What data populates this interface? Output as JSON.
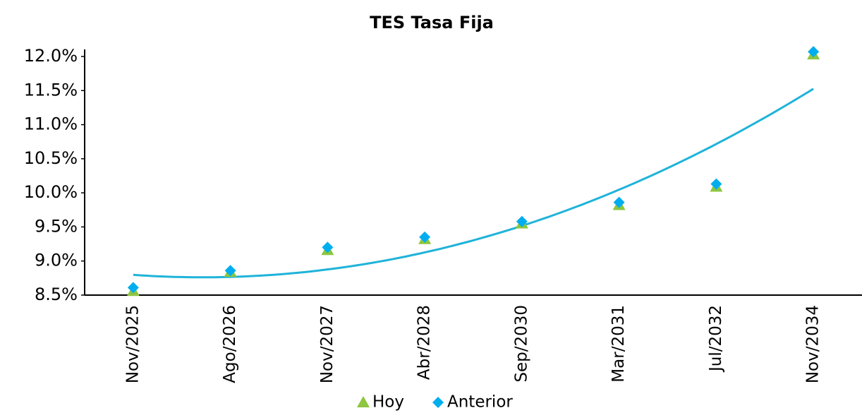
{
  "chart_data": {
    "type": "scatter",
    "title": "TES Tasa Fija",
    "categories": [
      "Nov/2025",
      "Ago/2026",
      "Nov/2027",
      "Abr/2028",
      "Sep/2030",
      "Mar/2031",
      "Jul/2032",
      "Nov/2034"
    ],
    "series": [
      {
        "name": "Hoy",
        "color": "#8dc63f",
        "marker": "triangle",
        "values": [
          8.56,
          8.84,
          9.16,
          9.32,
          9.55,
          9.82,
          10.09,
          12.03
        ]
      },
      {
        "name": "Anterior",
        "color": "#00aeef",
        "marker": "diamond",
        "values": [
          8.61,
          8.86,
          9.2,
          9.35,
          9.58,
          9.86,
          10.13,
          12.07
        ]
      }
    ],
    "trendline": {
      "series": 0,
      "order": 2,
      "color": "#1fb3d9"
    },
    "ylim": [
      8.5,
      12.0
    ],
    "yticks": [
      {
        "value": 8.5,
        "label": "8.5%"
      },
      {
        "value": 9.0,
        "label": "9.0%"
      },
      {
        "value": 9.5,
        "label": "9.5%"
      },
      {
        "value": 10.0,
        "label": "10.0%"
      },
      {
        "value": 10.5,
        "label": "10.5%"
      },
      {
        "value": 11.0,
        "label": "11.0%"
      },
      {
        "value": 11.5,
        "label": "11.5%"
      },
      {
        "value": 12.0,
        "label": "12.0%"
      }
    ],
    "grid": false,
    "legend": "bottom"
  }
}
